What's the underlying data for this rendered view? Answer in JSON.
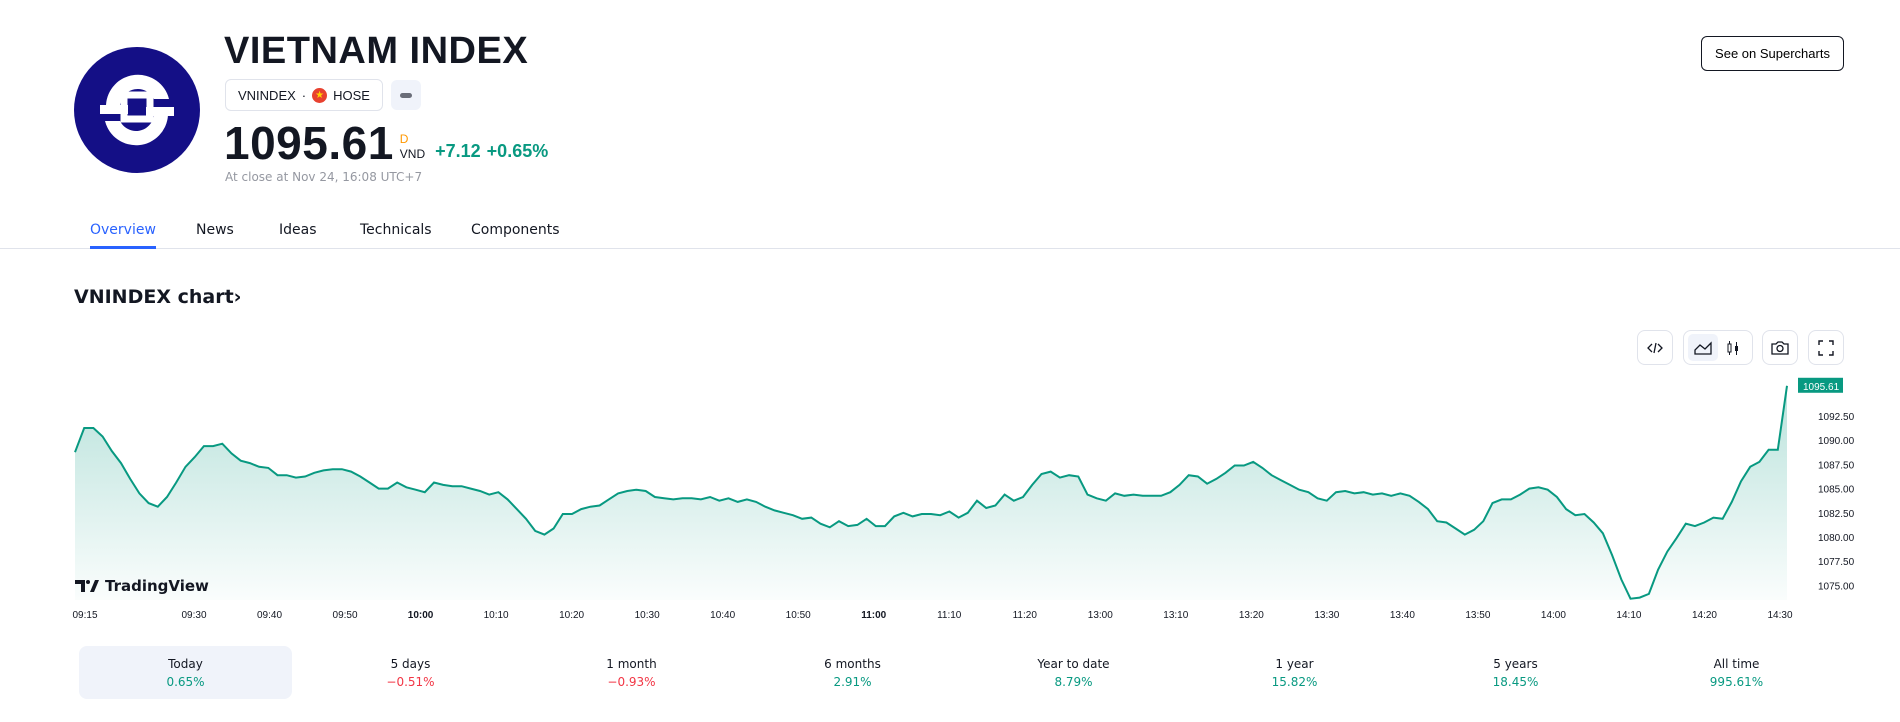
{
  "header": {
    "title": "VIETNAM INDEX",
    "symbol": "VNINDEX",
    "separator": "·",
    "exchange": "HOSE",
    "price": "1095.61",
    "price_flag": "D",
    "currency": "VND",
    "change": "+7.12",
    "change_pct": "+0.65%",
    "close_note": "At close at Nov 24, 16:08 UTC+7",
    "supercharts_label": "See on Supercharts",
    "logo_color": "#140f86"
  },
  "tabs": [
    {
      "label": "Overview",
      "active": true
    },
    {
      "label": "News"
    },
    {
      "label": "Ideas"
    },
    {
      "label": "Technicals"
    },
    {
      "label": "Components"
    }
  ],
  "chart_section": {
    "title": "VNINDEX chart",
    "chevron": "›",
    "toolbar": [
      "embed-code-icon",
      "area-chart-icon",
      "candlestick-icon",
      "camera-icon",
      "fullscreen-icon"
    ],
    "brand": "TradingView"
  },
  "chart_data": {
    "type": "area",
    "line_color": "#089981",
    "ylim": [
      1073.5,
      1096
    ],
    "y_ticks": [
      "1092.50",
      "1090.00",
      "1087.50",
      "1085.00",
      "1082.50",
      "1080.00",
      "1077.50",
      "1075.00"
    ],
    "last_value_label": "1095.61",
    "x_ticks": [
      "09:15",
      "09:30",
      "09:40",
      "09:50",
      "10:00",
      "10:10",
      "10:20",
      "10:30",
      "10:40",
      "10:50",
      "11:00",
      "11:10",
      "11:20",
      "13:00",
      "13:10",
      "13:20",
      "13:30",
      "13:40",
      "13:50",
      "14:00",
      "14:10",
      "14:20",
      "14:30"
    ],
    "values": [
      1088.75,
      1091.25,
      1091.25,
      1090.38,
      1088.88,
      1087.63,
      1086.0,
      1084.5,
      1083.5,
      1083.13,
      1084.13,
      1085.63,
      1087.25,
      1088.25,
      1089.38,
      1089.38,
      1089.63,
      1088.63,
      1087.88,
      1087.63,
      1087.25,
      1087.13,
      1086.38,
      1086.38,
      1086.13,
      1086.25,
      1086.63,
      1086.88,
      1087.0,
      1087.0,
      1086.75,
      1086.25,
      1085.63,
      1085.0,
      1085.0,
      1085.63,
      1085.13,
      1084.88,
      1084.63,
      1085.63,
      1085.38,
      1085.25,
      1085.25,
      1085.0,
      1084.75,
      1084.38,
      1084.63,
      1083.88,
      1082.88,
      1081.88,
      1080.63,
      1080.25,
      1080.88,
      1082.38,
      1082.38,
      1082.88,
      1083.13,
      1083.25,
      1083.88,
      1084.5,
      1084.75,
      1084.88,
      1084.75,
      1084.13,
      1084.0,
      1083.88,
      1084.0,
      1084.0,
      1083.88,
      1084.13,
      1083.75,
      1084.0,
      1083.63,
      1083.88,
      1083.63,
      1083.13,
      1082.75,
      1082.5,
      1082.25,
      1081.88,
      1082.0,
      1081.38,
      1081.0,
      1081.63,
      1081.13,
      1081.25,
      1081.88,
      1081.13,
      1081.13,
      1082.13,
      1082.5,
      1082.13,
      1082.38,
      1082.38,
      1082.25,
      1082.63,
      1082.0,
      1082.5,
      1083.75,
      1083.0,
      1083.25,
      1084.38,
      1083.75,
      1084.13,
      1085.38,
      1086.5,
      1086.75,
      1086.13,
      1086.38,
      1086.25,
      1084.38,
      1084.0,
      1083.75,
      1084.5,
      1084.25,
      1084.38,
      1084.25,
      1084.25,
      1084.25,
      1084.63,
      1085.38,
      1086.38,
      1086.25,
      1085.5,
      1086.0,
      1086.63,
      1087.38,
      1087.38,
      1087.75,
      1087.13,
      1086.38,
      1085.88,
      1085.38,
      1084.88,
      1084.63,
      1084.0,
      1083.75,
      1084.63,
      1084.75,
      1084.5,
      1084.63,
      1084.38,
      1084.5,
      1084.25,
      1084.5,
      1084.25,
      1083.63,
      1082.88,
      1081.63,
      1081.5,
      1080.88,
      1080.25,
      1080.75,
      1081.63,
      1083.5,
      1083.88,
      1083.88,
      1084.38,
      1085.0,
      1085.13,
      1084.88,
      1084.13,
      1082.88,
      1082.25,
      1082.38,
      1081.5,
      1080.38,
      1078.13,
      1075.63,
      1073.63,
      1073.75,
      1074.13,
      1076.63,
      1078.5,
      1079.88,
      1081.38,
      1081.13,
      1081.5,
      1082.0,
      1081.88,
      1083.63,
      1085.75,
      1087.25,
      1087.75,
      1089.0,
      1089.0,
      1095.61
    ]
  },
  "periods": [
    {
      "label": "Today",
      "value": "0.65%",
      "sign": "pos",
      "active": true
    },
    {
      "label": "5 days",
      "value": "−0.51%",
      "sign": "neg"
    },
    {
      "label": "1 month",
      "value": "−0.93%",
      "sign": "neg"
    },
    {
      "label": "6 months",
      "value": "2.91%",
      "sign": "pos"
    },
    {
      "label": "Year to date",
      "value": "8.79%",
      "sign": "pos"
    },
    {
      "label": "1 year",
      "value": "15.82%",
      "sign": "pos"
    },
    {
      "label": "5 years",
      "value": "18.45%",
      "sign": "pos"
    },
    {
      "label": "All time",
      "value": "995.61%",
      "sign": "pos"
    }
  ]
}
